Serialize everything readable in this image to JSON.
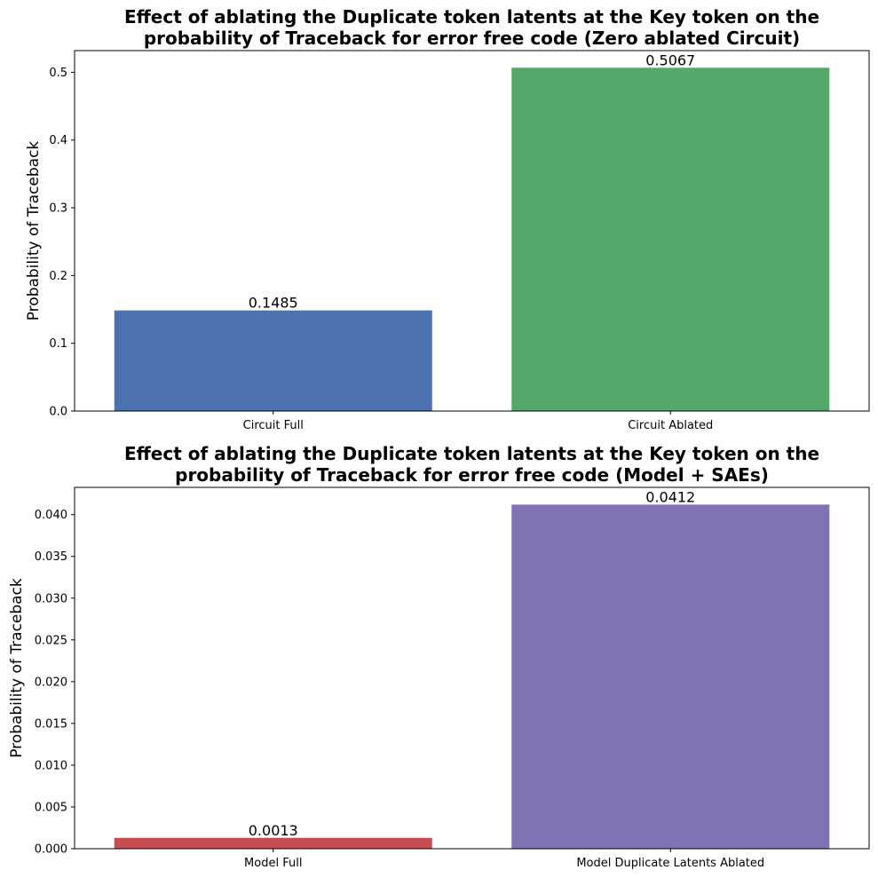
{
  "chart_data": [
    {
      "type": "bar",
      "title": "Effect of ablating the Duplicate token latents at the Key token on the\nprobability of Traceback for error free code (Zero ablated Circuit)",
      "xlabel": "",
      "ylabel": "Probability of Traceback",
      "categories": [
        "Circuit Full",
        "Circuit Ablated"
      ],
      "values": [
        0.1485,
        0.5067
      ],
      "data_labels": [
        "0.1485",
        "0.5067"
      ],
      "colors": [
        "#4c72b0",
        "#55a868"
      ],
      "ylim": [
        0,
        0.532
      ],
      "yticks": [
        0.0,
        0.1,
        0.2,
        0.3,
        0.4,
        0.5
      ],
      "ytick_labels": [
        "0.0",
        "0.1",
        "0.2",
        "0.3",
        "0.4",
        "0.5"
      ],
      "grid": false,
      "legend": "none"
    },
    {
      "type": "bar",
      "title": "Effect of ablating the Duplicate token latents at the Key token on the\nprobability of Traceback for error free code (Model + SAEs)",
      "xlabel": "",
      "ylabel": "Probability of Traceback",
      "categories": [
        "Model Full",
        "Model Duplicate Latents Ablated"
      ],
      "values": [
        0.0013,
        0.0412
      ],
      "data_labels": [
        "0.0013",
        "0.0412"
      ],
      "colors": [
        "#c44e52",
        "#8172b2"
      ],
      "ylim": [
        0,
        0.04326
      ],
      "yticks": [
        0.0,
        0.005,
        0.01,
        0.015,
        0.02,
        0.025,
        0.03,
        0.035,
        0.04
      ],
      "ytick_labels": [
        "0.000",
        "0.005",
        "0.010",
        "0.015",
        "0.020",
        "0.025",
        "0.030",
        "0.035",
        "0.040"
      ],
      "grid": false,
      "legend": "none"
    }
  ]
}
